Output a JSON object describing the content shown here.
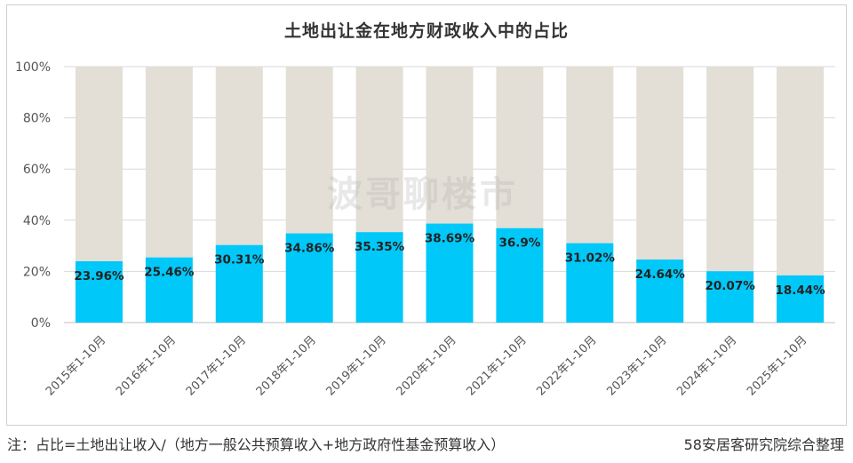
{
  "chart_data": {
    "type": "bar",
    "stacked": true,
    "title": "土地出让金在地方财政收入中的占比",
    "categories": [
      "2015年1-10月",
      "2016年1-10月",
      "2017年1-10月",
      "2018年1-10月",
      "2019年1-10月",
      "2020年1-10月",
      "2021年1-10月",
      "2022年1-10月",
      "2023年1-10月",
      "2024年1-10月",
      "2025年1-10月"
    ],
    "series": [
      {
        "values": [
          23.96,
          25.46,
          30.31,
          34.86,
          35.35,
          38.69,
          36.9,
          31.02,
          24.64,
          20.07,
          18.44
        ],
        "color": "#00c8f8"
      },
      {
        "values": [
          76.04,
          74.54,
          69.69,
          65.14,
          64.65,
          61.31,
          63.1,
          68.98,
          75.36,
          79.93,
          81.56
        ],
        "color": "#e3dfd6"
      }
    ],
    "data_labels": [
      "23.96%",
      "25.46%",
      "30.31%",
      "34.86%",
      "35.35%",
      "38.69%",
      "36.9%",
      "31.02%",
      "24.64%",
      "20.07%",
      "18.44%"
    ],
    "y_ticks": [
      "0%",
      "20%",
      "40%",
      "60%",
      "80%",
      "100%"
    ],
    "ylim": [
      0,
      100
    ],
    "grid": true,
    "legend": "none"
  },
  "watermark": "波哥聊楼市",
  "note": "注：占比=土地出让收入/（地方一般公共预算收入+地方政府性基金预算收入）",
  "source": "58安居客研究院综合整理"
}
